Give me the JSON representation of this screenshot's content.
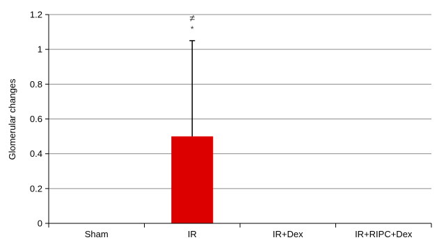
{
  "chart_data": {
    "type": "bar",
    "categories": [
      "Sham",
      "IR",
      "IR+Dex",
      "IR+RIPC+Dex"
    ],
    "values": [
      0,
      0.5,
      0,
      0
    ],
    "error_upper": [
      0,
      0.55,
      0,
      0
    ],
    "ylabel": "Glomerular changes",
    "xlabel": "",
    "ylim": [
      0,
      1.2
    ],
    "yticks": [
      "0",
      "0.2",
      "0.4",
      "0.6",
      "0.8",
      "1",
      "1.2"
    ],
    "grid": true,
    "bar_color": "#dd0000",
    "annotations": [
      {
        "category": "IR",
        "symbols": [
          "≠",
          "*"
        ]
      }
    ]
  }
}
